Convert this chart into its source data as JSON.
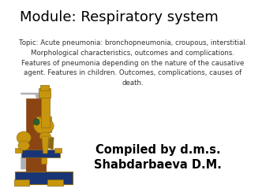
{
  "background_color": "#ffffff",
  "title": "Module: Respiratory system",
  "title_fontsize": 13,
  "title_color": "#000000",
  "body_text": "Topic: Acute pneumonia: bronchopneumonia, croupous, interstitial.\nMorphological characteristics, outcomes and complications.\nFeatures of pneumonia depending on the nature of the causative\nagent. Features in children. Outcomes, complications, causes of\ndeath.",
  "body_fontsize": 6.2,
  "body_color": "#333333",
  "compiled_text": "Compiled by d.m.s.\nShabdarbaeva D.M.",
  "compiled_fontsize": 10.5,
  "compiled_color": "#000000",
  "micro_brown": "#8B4513",
  "micro_gold": "#C8960C",
  "micro_dark_gold": "#8B6914",
  "micro_blue": "#1a3575",
  "micro_gray": "#b0b0b8",
  "micro_green": "#2a6030"
}
